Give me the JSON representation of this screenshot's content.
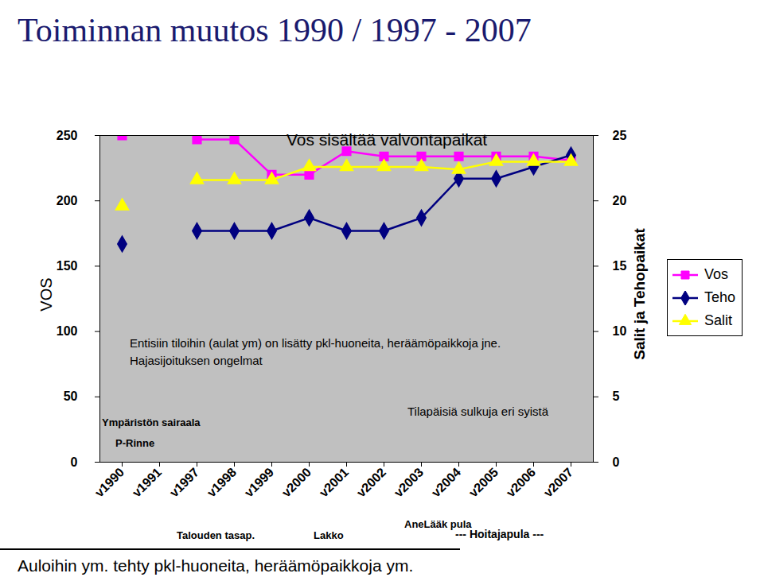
{
  "chart_data": {
    "type": "line",
    "title": "Toiminnan muutos 1990 / 1997 - 2007",
    "categories": [
      "v1990",
      "v1991",
      "v1997",
      "v1998",
      "v1999",
      "v2000",
      "v2001",
      "v2002",
      "v2003",
      "v2004",
      "v2005",
      "v2006",
      "v2007"
    ],
    "series": [
      {
        "name": "Vos",
        "color": "#ff00ff",
        "marker": "square",
        "values": [
          250,
          null,
          247,
          247,
          220,
          220,
          238,
          234,
          234,
          234,
          234,
          234,
          231
        ]
      },
      {
        "name": "Teho",
        "color": "#000080",
        "marker": "diamond",
        "axis": "y2",
        "values": [
          16.7,
          null,
          17.7,
          17.7,
          17.7,
          18.7,
          17.7,
          17.7,
          18.7,
          21.7,
          21.7,
          22.6,
          23.5
        ]
      },
      {
        "name": "Salit",
        "color": "#ffff00",
        "marker": "triangle",
        "axis": "y2",
        "values": [
          19.6,
          null,
          21.6,
          21.6,
          21.6,
          22.6,
          22.6,
          22.6,
          22.6,
          22.4,
          23.0,
          23.0,
          23.0
        ]
      }
    ],
    "y_label": "VOS",
    "y2_label": "Salit ja Tehopaikat",
    "ylim": [
      0,
      250
    ],
    "yticks": [
      0,
      50,
      100,
      150,
      200,
      250
    ],
    "y2lim": [
      0,
      25
    ],
    "y2ticks": [
      0,
      5,
      10,
      15,
      20,
      25
    ],
    "grid": false,
    "legend": "right",
    "annotations": [
      "Vos sisältää valvontapaikat",
      "Entisiin tiloihin (aulat ym) on lisätty pkl-huoneita, heräämöpaikkoja jne.",
      "Hajasijoituksen ongelmat",
      "Tilapäisiä sulkuja eri syistä",
      "Ympäristön sairaala",
      "P-Rinne",
      "Talouden tasap.",
      "Lakko",
      "AneLääk pula",
      "--- Hoitajapula ---"
    ],
    "caption": "Auloihin ym. tehty pkl-huoneita, heräämöpaikkoja ym."
  }
}
